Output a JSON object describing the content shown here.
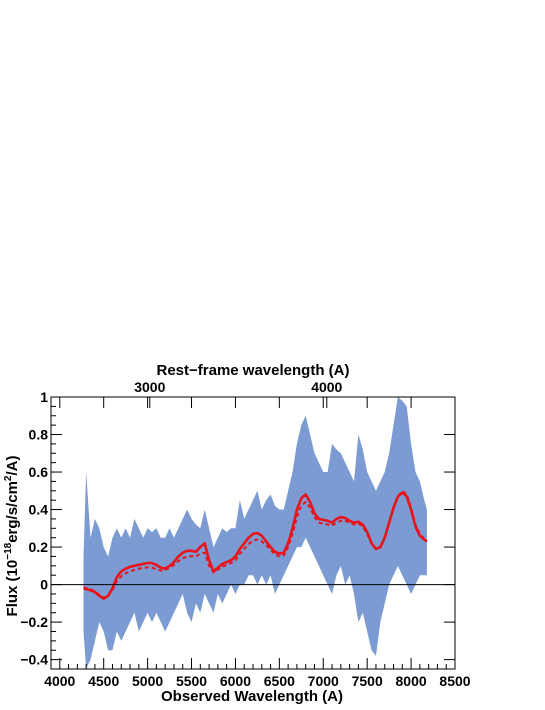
{
  "chart_data": {
    "type": "line",
    "xlabel": "Observed Wavelength (A)",
    "x2label": "Rest−frame wavelength (A)",
    "ylabel_parts": [
      "Flux (10",
      "−18",
      "erg/s/cm",
      "2",
      "/A)"
    ],
    "xlim": [
      3900,
      8500
    ],
    "ylim": [
      -0.45,
      1.0
    ],
    "x_ticks": [
      4000,
      4500,
      5000,
      5500,
      6000,
      6500,
      7000,
      7500,
      8000,
      8500
    ],
    "y_ticks": [
      -0.4,
      -0.2,
      0,
      0.2,
      0.4,
      0.6,
      0.8,
      1
    ],
    "y_tick_labels": [
      "−0.4",
      "−0.2",
      "0",
      "0.2",
      "0.4",
      "0.6",
      "0.8",
      "1"
    ],
    "top_axis": {
      "ticks": [
        {
          "x": 5025,
          "label": "3000"
        },
        {
          "x": 7040,
          "label": "4000"
        }
      ]
    },
    "zero_line": 0,
    "colors": {
      "band": "#7b9bd2",
      "model": "#e8131b"
    },
    "series": [
      {
        "style": "band",
        "x": [
          4270,
          4300,
          4350,
          4400,
          4450,
          4500,
          4550,
          4600,
          4650,
          4700,
          4750,
          4800,
          4850,
          4900,
          4950,
          5000,
          5050,
          5100,
          5150,
          5200,
          5250,
          5300,
          5350,
          5400,
          5450,
          5500,
          5550,
          5600,
          5650,
          5700,
          5750,
          5800,
          5850,
          5900,
          5950,
          6000,
          6050,
          6100,
          6150,
          6200,
          6250,
          6300,
          6350,
          6400,
          6450,
          6500,
          6550,
          6600,
          6650,
          6700,
          6750,
          6800,
          6850,
          6900,
          6950,
          7000,
          7050,
          7100,
          7150,
          7200,
          7250,
          7300,
          7350,
          7400,
          7450,
          7500,
          7550,
          7600,
          7650,
          7700,
          7750,
          7800,
          7850,
          7900,
          7950,
          8000,
          8050,
          8100,
          8150,
          8180
        ],
        "upper": [
          0.15,
          0.6,
          0.25,
          0.35,
          0.3,
          0.2,
          0.15,
          0.25,
          0.3,
          0.25,
          0.3,
          0.25,
          0.35,
          0.3,
          0.25,
          0.3,
          0.28,
          0.3,
          0.25,
          0.25,
          0.3,
          0.25,
          0.3,
          0.35,
          0.4,
          0.35,
          0.32,
          0.3,
          0.4,
          0.3,
          0.2,
          0.25,
          0.3,
          0.28,
          0.3,
          0.3,
          0.45,
          0.35,
          0.4,
          0.45,
          0.5,
          0.4,
          0.45,
          0.48,
          0.42,
          0.4,
          0.4,
          0.5,
          0.6,
          0.75,
          0.85,
          0.9,
          0.8,
          0.7,
          0.65,
          0.6,
          0.6,
          0.75,
          0.72,
          0.7,
          0.65,
          0.6,
          0.55,
          0.8,
          0.72,
          0.6,
          0.55,
          0.5,
          0.55,
          0.6,
          0.7,
          0.85,
          1.0,
          0.98,
          0.95,
          0.75,
          0.6,
          0.55,
          0.45,
          0.4
        ],
        "lower": [
          -0.25,
          -0.45,
          -0.4,
          -0.3,
          -0.2,
          -0.25,
          -0.35,
          -0.35,
          -0.25,
          -0.3,
          -0.25,
          -0.2,
          -0.15,
          -0.25,
          -0.2,
          -0.15,
          -0.2,
          -0.15,
          -0.2,
          -0.25,
          -0.2,
          -0.15,
          -0.1,
          -0.05,
          -0.15,
          -0.2,
          -0.1,
          -0.15,
          -0.05,
          -0.1,
          -0.15,
          -0.05,
          -0.1,
          -0.05,
          0.0,
          -0.05,
          0.0,
          0.0,
          0.05,
          0.05,
          0.0,
          0.05,
          0.0,
          0.05,
          -0.05,
          0.0,
          0.05,
          0.1,
          0.15,
          0.2,
          0.2,
          0.25,
          0.2,
          0.15,
          0.1,
          0.05,
          0.0,
          -0.05,
          0.05,
          0.1,
          0.0,
          0.05,
          -0.05,
          -0.2,
          -0.15,
          -0.25,
          -0.35,
          -0.38,
          -0.2,
          -0.1,
          0.0,
          0.05,
          0.1,
          0.05,
          0.0,
          -0.05,
          0.0,
          0.05,
          0.05,
          0.05
        ]
      },
      {
        "style": "solid",
        "x": [
          4270,
          4350,
          4400,
          4450,
          4500,
          4550,
          4600,
          4650,
          4700,
          4750,
          4800,
          4850,
          4900,
          4950,
          5000,
          5050,
          5100,
          5150,
          5200,
          5250,
          5300,
          5350,
          5400,
          5450,
          5500,
          5550,
          5600,
          5650,
          5700,
          5750,
          5800,
          5850,
          5900,
          5950,
          6000,
          6050,
          6100,
          6150,
          6200,
          6250,
          6300,
          6350,
          6400,
          6450,
          6500,
          6550,
          6600,
          6650,
          6700,
          6750,
          6800,
          6850,
          6900,
          6950,
          7000,
          7050,
          7100,
          7150,
          7200,
          7250,
          7300,
          7350,
          7400,
          7450,
          7500,
          7550,
          7600,
          7650,
          7700,
          7750,
          7800,
          7850,
          7900,
          7950,
          8000,
          8050,
          8100,
          8150,
          8180
        ],
        "y": [
          -0.02,
          -0.03,
          -0.04,
          -0.06,
          -0.075,
          -0.06,
          -0.02,
          0.04,
          0.07,
          0.085,
          0.095,
          0.1,
          0.105,
          0.11,
          0.115,
          0.115,
          0.105,
          0.09,
          0.085,
          0.1,
          0.12,
          0.15,
          0.17,
          0.18,
          0.18,
          0.175,
          0.2,
          0.22,
          0.13,
          0.07,
          0.09,
          0.11,
          0.12,
          0.13,
          0.15,
          0.19,
          0.22,
          0.25,
          0.27,
          0.275,
          0.26,
          0.23,
          0.2,
          0.175,
          0.165,
          0.17,
          0.22,
          0.3,
          0.4,
          0.46,
          0.48,
          0.44,
          0.38,
          0.35,
          0.345,
          0.34,
          0.33,
          0.35,
          0.36,
          0.355,
          0.34,
          0.33,
          0.335,
          0.32,
          0.28,
          0.22,
          0.19,
          0.2,
          0.25,
          0.33,
          0.41,
          0.47,
          0.49,
          0.47,
          0.4,
          0.31,
          0.26,
          0.24,
          0.23
        ]
      },
      {
        "style": "dashed",
        "x": [
          4270,
          4350,
          4400,
          4450,
          4500,
          4550,
          4600,
          4650,
          4700,
          4750,
          4800,
          4850,
          4900,
          4950,
          5000,
          5050,
          5100,
          5150,
          5200,
          5250,
          5300,
          5350,
          5400,
          5450,
          5500,
          5550,
          5600,
          5650,
          5700,
          5750,
          5800,
          5850,
          5900,
          5950,
          6000,
          6050,
          6100,
          6150,
          6200,
          6250,
          6300,
          6350,
          6400,
          6450,
          6500,
          6550,
          6600,
          6650,
          6700,
          6750,
          6800,
          6850,
          6900,
          6950,
          7000,
          7050,
          7100,
          7150,
          7200,
          7250,
          7300,
          7350,
          7400,
          7450,
          7500,
          7550,
          7600,
          7650,
          7700,
          7750,
          7800,
          7850,
          7900,
          7950,
          8000,
          8050,
          8100,
          8150,
          8180
        ],
        "y": [
          -0.015,
          -0.025,
          -0.035,
          -0.055,
          -0.07,
          -0.06,
          -0.03,
          0.02,
          0.045,
          0.06,
          0.07,
          0.078,
          0.085,
          0.09,
          0.092,
          0.09,
          0.082,
          0.075,
          0.078,
          0.09,
          0.105,
          0.125,
          0.14,
          0.15,
          0.152,
          0.15,
          0.165,
          0.17,
          0.1,
          0.065,
          0.08,
          0.095,
          0.105,
          0.115,
          0.13,
          0.165,
          0.19,
          0.215,
          0.235,
          0.24,
          0.23,
          0.21,
          0.185,
          0.16,
          0.15,
          0.155,
          0.2,
          0.27,
          0.36,
          0.42,
          0.44,
          0.41,
          0.36,
          0.33,
          0.325,
          0.32,
          0.315,
          0.33,
          0.34,
          0.34,
          0.33,
          0.32,
          0.325,
          0.31,
          0.27,
          0.215,
          0.19,
          0.2,
          0.25,
          0.33,
          0.41,
          0.47,
          0.5,
          0.48,
          0.41,
          0.32,
          0.27,
          0.245,
          0.235
        ]
      }
    ]
  }
}
